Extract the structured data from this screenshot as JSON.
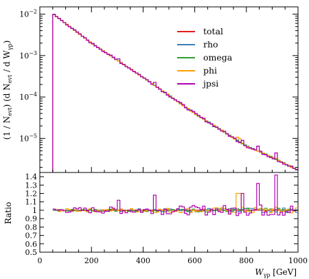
{
  "chart_data": [
    {
      "type": "line",
      "panel": "main",
      "ylabel": "(1 / N_evt) (dN_evt / dW_γp)",
      "log_y": true,
      "xlim": [
        0,
        1000
      ],
      "ylim": [
        1.5e-06,
        0.015
      ],
      "y_tick_labels": [
        "10^-5",
        "10^-4",
        "10^-3",
        "10^-2"
      ],
      "legend_placement": "top-right",
      "series": [
        {
          "name": "total",
          "color": "#e41a1c"
        },
        {
          "name": "rho",
          "color": "#377eb8"
        },
        {
          "name": "omega",
          "color": "#2ca02c"
        },
        {
          "name": "phi",
          "color": "#ff9f00"
        },
        {
          "name": "jpsi",
          "color": "#b000b0"
        }
      ],
      "x": [
        50,
        200,
        400,
        600,
        800,
        900,
        1000
      ],
      "values_approx": [
        0.0103,
        0.002,
        0.0003,
        4e-05,
        6.5e-06,
        3.5e-06,
        1.7e-06
      ]
    },
    {
      "type": "line",
      "panel": "ratio",
      "ylabel": "Ratio",
      "xlabel": "W_γp [GeV]",
      "xlim": [
        0,
        1000
      ],
      "ylim": [
        0.5,
        1.45
      ],
      "x_tick_labels": [
        "0",
        "200",
        "400",
        "600",
        "800",
        "1000"
      ],
      "y_tick_labels": [
        "0.5",
        "0.6",
        "0.7",
        "0.8",
        "0.9",
        "1",
        "1.1",
        "1.2",
        "1.3",
        "1.4"
      ],
      "reference": 1.0
    }
  ],
  "legend": {
    "items": [
      "total",
      "rho",
      "omega",
      "phi",
      "jpsi"
    ]
  },
  "labels": {
    "ylabel_main": "(1 / N",
    "ylabel_main_sub1": "evt",
    "ylabel_main_mid": ") (d N",
    "ylabel_main_sub2": "evt",
    "ylabel_main_end": " / d W",
    "ylabel_main_sub3": "γp",
    "ylabel_main_close": ")",
    "ylabel_ratio": "Ratio",
    "xlabel_w": "W",
    "xlabel_sub": "γp",
    "xlabel_unit": " [GeV]"
  },
  "main_y_ticks": [
    {
      "base": "10",
      "exp": "−2",
      "v": 0.01
    },
    {
      "base": "10",
      "exp": "−3",
      "v": 0.001
    },
    {
      "base": "10",
      "exp": "−4",
      "v": 0.0001
    },
    {
      "base": "10",
      "exp": "−5",
      "v": 1e-05
    }
  ],
  "ratio_y_ticks": [
    "1.4",
    "1.3",
    "1.2",
    "1.1",
    "1",
    "0.9",
    "0.8",
    "0.7",
    "0.6",
    "0.5"
  ],
  "x_ticks": [
    "0",
    "200",
    "400",
    "600",
    "800",
    "1000"
  ]
}
